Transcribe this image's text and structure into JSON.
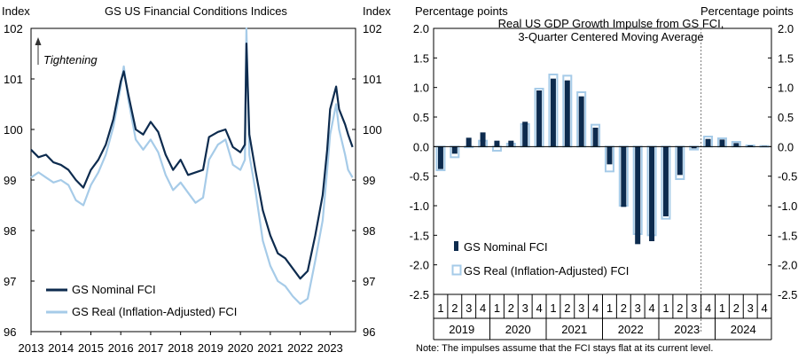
{
  "colors": {
    "nominal": "#0d2b4e",
    "real": "#a6cbe8",
    "axis": "#000000"
  },
  "charts": {
    "left": {
      "title": "GS US Financial Conditions Indices",
      "y_label_left": "Index",
      "y_label_right": "Index",
      "annotation": "Tightening",
      "legend": [
        "GS Nominal FCI",
        "GS Real (Inflation-Adjusted) FCI"
      ]
    },
    "right": {
      "title_line1": "Real US GDP Growth Impulse from GS FCI,",
      "title_line2": "3-Quarter Centered Moving Average",
      "y_label_left": "Percentage points",
      "y_label_right": "Percentage points",
      "legend": [
        "GS Nominal FCI",
        "GS Real (Inflation-Adjusted) FCI"
      ],
      "note": "Note: The impulses assume that the FCI stays flat at its current level."
    }
  },
  "chart_data": [
    {
      "type": "line",
      "title": "GS US Financial Conditions Indices",
      "ylabel": "Index",
      "ylim": [
        96,
        102
      ],
      "y_ticks": [
        "96",
        "97",
        "98",
        "99",
        "100",
        "101",
        "102"
      ],
      "x_ticks": [
        "2013",
        "2014",
        "2015",
        "2016",
        "2017",
        "2018",
        "2019",
        "2020",
        "2021",
        "2022",
        "2023"
      ],
      "series": [
        {
          "name": "GS Nominal FCI",
          "x": [
            2013.0,
            2013.25,
            2013.5,
            2013.75,
            2014.0,
            2014.25,
            2014.5,
            2014.75,
            2015.0,
            2015.25,
            2015.5,
            2015.75,
            2016.0,
            2016.1,
            2016.25,
            2016.5,
            2016.75,
            2017.0,
            2017.25,
            2017.5,
            2017.75,
            2018.0,
            2018.25,
            2018.5,
            2018.75,
            2018.95,
            2019.25,
            2019.5,
            2019.75,
            2020.0,
            2020.15,
            2020.2,
            2020.3,
            2020.5,
            2020.75,
            2021.0,
            2021.25,
            2021.5,
            2021.75,
            2022.0,
            2022.25,
            2022.5,
            2022.75,
            2022.9,
            2023.0,
            2023.2,
            2023.3,
            2023.5,
            2023.6,
            2023.75
          ],
          "values": [
            99.6,
            99.45,
            99.5,
            99.35,
            99.3,
            99.2,
            99.0,
            98.85,
            99.2,
            99.4,
            99.7,
            100.2,
            100.95,
            101.15,
            100.7,
            100.0,
            99.9,
            100.15,
            99.95,
            99.5,
            99.2,
            99.4,
            99.1,
            99.15,
            99.2,
            99.85,
            99.95,
            100.0,
            99.65,
            99.55,
            99.7,
            101.7,
            99.9,
            99.2,
            98.4,
            97.9,
            97.55,
            97.45,
            97.25,
            97.05,
            97.2,
            97.9,
            98.7,
            99.6,
            100.4,
            100.85,
            100.4,
            100.1,
            99.9,
            99.65
          ]
        },
        {
          "name": "GS Real (Inflation-Adjusted) FCI",
          "x": [
            2013.0,
            2013.25,
            2013.5,
            2013.75,
            2014.0,
            2014.25,
            2014.5,
            2014.75,
            2015.0,
            2015.25,
            2015.5,
            2015.75,
            2016.0,
            2016.1,
            2016.25,
            2016.5,
            2016.75,
            2017.0,
            2017.25,
            2017.5,
            2017.75,
            2018.0,
            2018.25,
            2018.5,
            2018.75,
            2018.95,
            2019.25,
            2019.5,
            2019.75,
            2020.0,
            2020.15,
            2020.2,
            2020.3,
            2020.5,
            2020.75,
            2021.0,
            2021.25,
            2021.5,
            2021.75,
            2022.0,
            2022.25,
            2022.5,
            2022.75,
            2022.9,
            2023.0,
            2023.2,
            2023.3,
            2023.5,
            2023.6,
            2023.75
          ],
          "values": [
            99.05,
            99.15,
            99.05,
            98.95,
            99.0,
            98.9,
            98.6,
            98.5,
            98.9,
            99.15,
            99.5,
            100.05,
            100.85,
            101.25,
            100.6,
            99.8,
            99.6,
            99.8,
            99.55,
            99.1,
            98.8,
            98.95,
            98.75,
            98.55,
            98.65,
            99.4,
            99.7,
            99.8,
            99.3,
            99.2,
            99.4,
            102.0,
            99.5,
            98.8,
            97.8,
            97.3,
            97.0,
            96.9,
            96.7,
            96.55,
            96.65,
            97.4,
            98.2,
            99.2,
            99.9,
            100.5,
            100.0,
            99.5,
            99.2,
            99.05
          ]
        }
      ]
    },
    {
      "type": "bar",
      "title": "Real US GDP Growth Impulse from GS FCI, 3-Quarter Centered Moving Average",
      "ylabel": "Percentage points",
      "ylim": [
        -2.5,
        2.0
      ],
      "y_ticks": [
        "-2.5",
        "-2.0",
        "-1.5",
        "-1.0",
        "-0.5",
        "0.0",
        "0.5",
        "1.0",
        "1.5",
        "2.0"
      ],
      "quarters": [
        "1",
        "2",
        "3",
        "4",
        "1",
        "2",
        "3",
        "4",
        "1",
        "2",
        "3",
        "4",
        "1",
        "2",
        "3",
        "4",
        "1",
        "2",
        "3",
        "4",
        "1",
        "2",
        "3",
        "4"
      ],
      "years": [
        "2019",
        "2020",
        "2021",
        "2022",
        "2023",
        "2024"
      ],
      "projection_starts_after_index": 18,
      "series": [
        {
          "name": "GS Nominal FCI",
          "values": [
            -0.38,
            -0.12,
            0.15,
            0.24,
            0.1,
            0.1,
            0.42,
            0.95,
            1.15,
            1.12,
            0.85,
            0.32,
            -0.3,
            -1.02,
            -1.65,
            -1.6,
            -1.18,
            -0.48,
            -0.03,
            0.13,
            0.12,
            0.06,
            0.02,
            0.01
          ]
        },
        {
          "name": "GS Real (Inflation-Adjusted) FCI",
          "values": [
            -0.4,
            -0.18,
            0.0,
            0.1,
            -0.07,
            0.05,
            0.38,
            0.98,
            1.22,
            1.2,
            0.92,
            0.37,
            -0.42,
            -1.0,
            -1.48,
            -1.5,
            -1.22,
            -0.55,
            -0.05,
            0.17,
            0.14,
            0.08,
            0.02,
            0.01
          ]
        }
      ]
    }
  ]
}
